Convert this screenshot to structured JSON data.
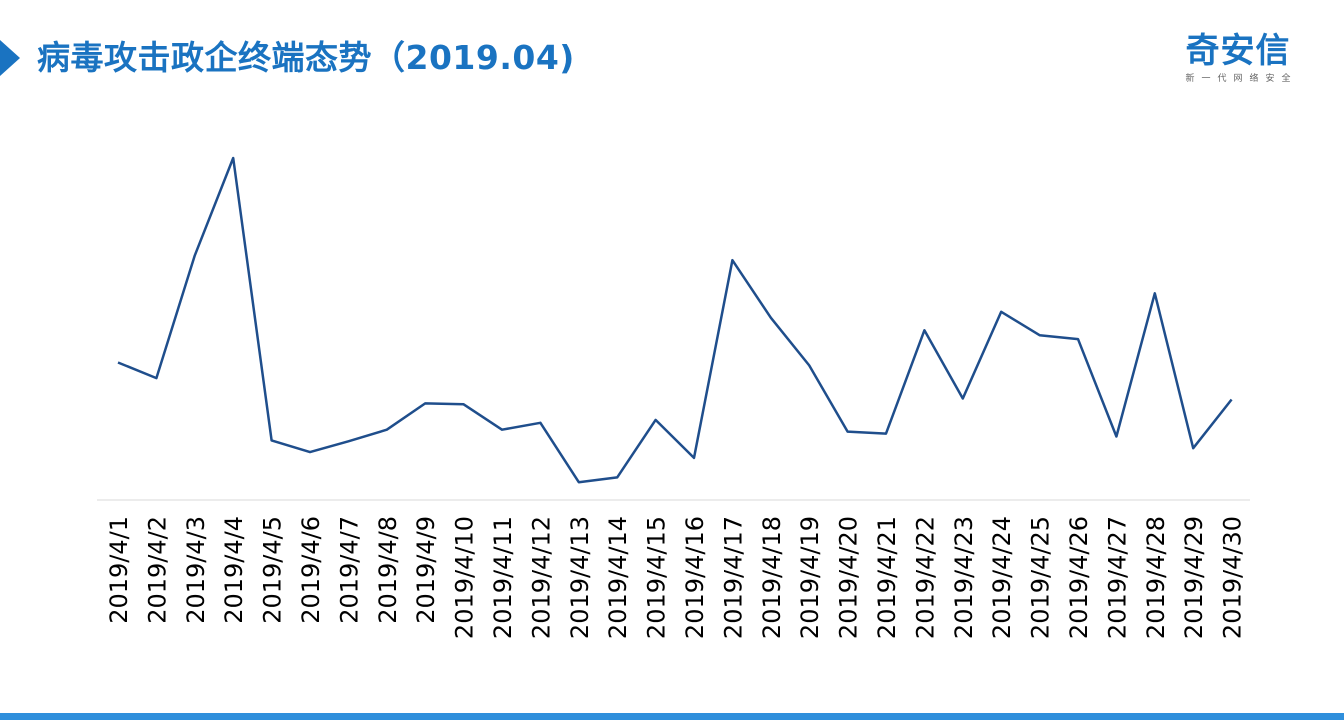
{
  "header": {
    "title": "病毒攻击政企终端态势（2019.04)"
  },
  "logo": {
    "name": "奇安信",
    "tagline": "新一代网络安全"
  },
  "colors": {
    "accent": "#1a73c1",
    "line": "#1f4e8c",
    "axis": "#d9d9d9",
    "bottom_bar": "#2f8fdc"
  },
  "chart_data": {
    "type": "line",
    "title": "",
    "xlabel": "",
    "ylabel": "",
    "grid": false,
    "legend": "none",
    "categories": [
      "2019/4/1",
      "2019/4/2",
      "2019/4/3",
      "2019/4/4",
      "2019/4/5",
      "2019/4/6",
      "2019/4/7",
      "2019/4/8",
      "2019/4/9",
      "2019/4/10",
      "2019/4/11",
      "2019/4/12",
      "2019/4/13",
      "2019/4/14",
      "2019/4/15",
      "2019/4/16",
      "2019/4/17",
      "2019/4/18",
      "2019/4/19",
      "2019/4/20",
      "2019/4/21",
      "2019/4/22",
      "2019/4/23",
      "2019/4/24",
      "2019/4/25",
      "2019/4/26",
      "2019/4/27",
      "2019/4/28",
      "2019/4/29",
      "2019/4/30"
    ],
    "ylim": [
      0,
      342
    ],
    "series": [
      {
        "values": [
          132,
          116,
          242,
          342,
          52,
          40,
          51,
          63,
          90,
          89,
          63,
          70,
          9,
          14,
          73,
          34,
          237,
          178,
          129,
          61,
          59,
          165,
          95,
          184,
          160,
          156,
          56,
          203,
          44,
          94
        ]
      }
    ]
  }
}
